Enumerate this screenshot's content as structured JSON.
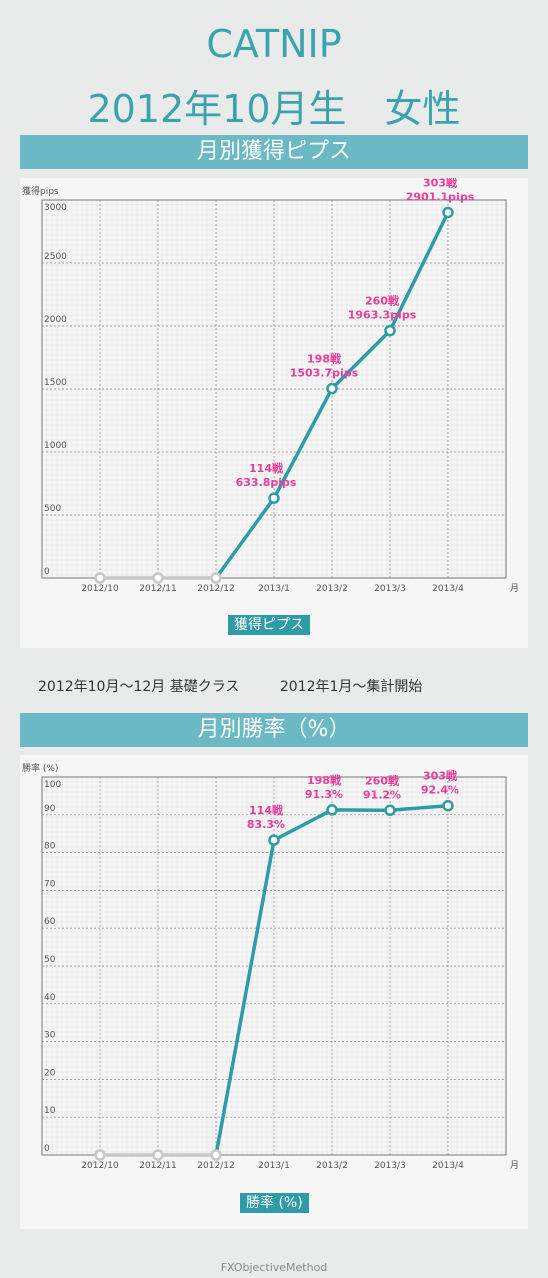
{
  "header": {
    "name": "CATNIP",
    "subtitle": "2012年10月生　女性"
  },
  "note": {
    "left": "2012年10月〜12月 基礎クラス",
    "right": "2012年1月〜集計開始"
  },
  "footer": "FXObjectiveMethod",
  "colors": {
    "accent": "#2e9ba8",
    "band": "#6bb9c4",
    "label": "#e83e9c",
    "inactive": "#c8c8c8"
  },
  "chart_data": [
    {
      "type": "line",
      "title": "月別獲得ピプス",
      "ylabel": "獲得pips",
      "xlabel": "月",
      "legend": "獲得ピプス",
      "categories": [
        "2012/10",
        "2012/11",
        "2012/12",
        "2013/1",
        "2013/2",
        "2013/3",
        "2013/4"
      ],
      "values": [
        0,
        0,
        0,
        633.8,
        1503.7,
        1963.3,
        2901.1
      ],
      "ylim": [
        0,
        3000
      ],
      "yticks": [
        0,
        500,
        1000,
        1500,
        2000,
        2500,
        3000
      ],
      "grid": true,
      "annotations": [
        {
          "index": 3,
          "lines": [
            "114戦",
            "633.8pips"
          ]
        },
        {
          "index": 4,
          "lines": [
            "198戦",
            "1503.7pips"
          ]
        },
        {
          "index": 5,
          "lines": [
            "260戦",
            "1963.3pips"
          ]
        },
        {
          "index": 6,
          "lines": [
            "303戦",
            "2901.1pips"
          ]
        }
      ]
    },
    {
      "type": "line",
      "title": "月別勝率（%）",
      "ylabel": "勝率 (%)",
      "xlabel": "月",
      "legend": "勝率 (%)",
      "categories": [
        "2012/10",
        "2012/11",
        "2012/12",
        "2013/1",
        "2013/2",
        "2013/3",
        "2013/4"
      ],
      "values": [
        0,
        0,
        0,
        83.3,
        91.3,
        91.2,
        92.4
      ],
      "ylim": [
        0,
        100
      ],
      "yticks": [
        0,
        10,
        20,
        30,
        40,
        50,
        60,
        70,
        80,
        90,
        100
      ],
      "grid": true,
      "annotations": [
        {
          "index": 3,
          "lines": [
            "114戦",
            "83.3%"
          ]
        },
        {
          "index": 4,
          "lines": [
            "198戦",
            "91.3%"
          ]
        },
        {
          "index": 5,
          "lines": [
            "260戦",
            "91.2%"
          ]
        },
        {
          "index": 6,
          "lines": [
            "303戦",
            "92.4%"
          ]
        }
      ]
    }
  ]
}
